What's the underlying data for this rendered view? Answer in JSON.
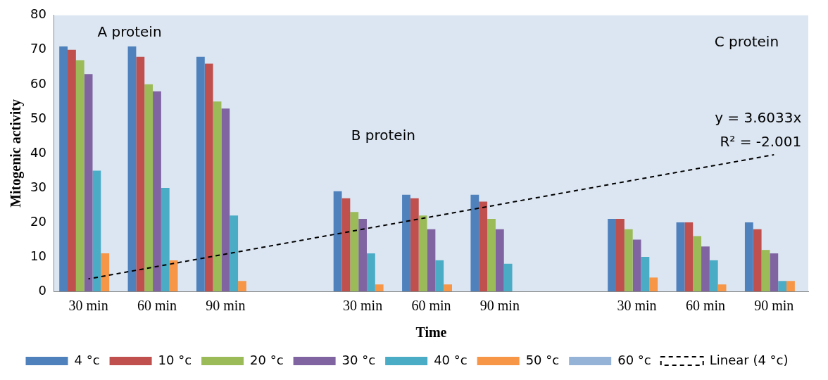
{
  "chart_data": {
    "type": "bar",
    "xlabel": "Time",
    "ylabel": "Mitogenic activity",
    "categories": [
      "30 min",
      "60 min",
      "90 min",
      null,
      "30 min",
      "60 min",
      "90 min",
      null,
      "30 min",
      "60 min",
      "90 min"
    ],
    "ylim": [
      0,
      80
    ],
    "yticks": [
      0,
      10,
      20,
      30,
      40,
      50,
      60,
      70,
      80
    ],
    "grid": false,
    "legend": "bottom",
    "series": [
      {
        "name": "4 °c",
        "color": "#4f81bd",
        "values": [
          71,
          71,
          68,
          null,
          29,
          28,
          28,
          null,
          21,
          20,
          20
        ]
      },
      {
        "name": "10 °c",
        "color": "#c0504d",
        "values": [
          70,
          68,
          66,
          null,
          27,
          27,
          26,
          null,
          21,
          20,
          18
        ]
      },
      {
        "name": "20 °c",
        "color": "#9bbb59",
        "values": [
          67,
          60,
          55,
          null,
          23,
          22,
          21,
          null,
          18,
          16,
          12
        ]
      },
      {
        "name": "30 °c",
        "color": "#8064a2",
        "values": [
          63,
          58,
          53,
          null,
          21,
          18,
          18,
          null,
          15,
          13,
          11
        ]
      },
      {
        "name": "40 °c",
        "color": "#4bacc6",
        "values": [
          35,
          30,
          22,
          null,
          11,
          9,
          8,
          null,
          10,
          9,
          3
        ]
      },
      {
        "name": "50 °c",
        "color": "#f79646",
        "values": [
          11,
          9,
          3,
          null,
          2,
          2,
          0,
          null,
          4,
          2,
          3
        ]
      },
      {
        "name": "60 °c",
        "color": "#95b3d7",
        "values": [
          0,
          0,
          0,
          null,
          0,
          0,
          0,
          null,
          0,
          0,
          0
        ]
      },
      {
        "name": "Linear (4 °c)",
        "type": "line",
        "color": "#000000",
        "line_style": "dashed",
        "marker": "none",
        "values": [
          3.6,
          null,
          null,
          null,
          null,
          null,
          null,
          null,
          null,
          null,
          39.6
        ]
      }
    ],
    "annotations": [
      "A protein",
      "B protein",
      "C protein",
      "y = 3.6033x",
      "R² = -2.001"
    ]
  }
}
